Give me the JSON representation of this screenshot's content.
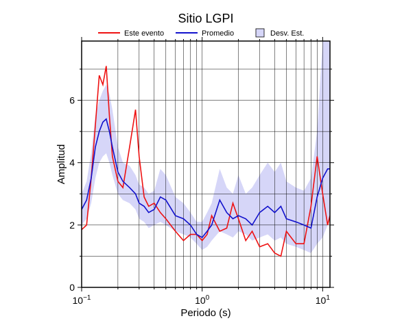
{
  "chart_data": {
    "type": "line",
    "title": "Sitio LGPI",
    "x_label": "Periodo (s)",
    "y_label": "Amplitud",
    "log_x": true,
    "grid": true,
    "xlim": [
      0.1,
      11.5
    ],
    "ylim": [
      0,
      7.9
    ],
    "xticks": [
      {
        "value": 0.1,
        "label": "10",
        "exponent": "−1"
      },
      {
        "value": 1,
        "label": "10",
        "exponent": "0"
      },
      {
        "value": 10,
        "label": "10",
        "exponent": "1"
      }
    ],
    "xminor": [
      0.2,
      0.3,
      0.4,
      0.5,
      0.6,
      0.7,
      0.8,
      0.9,
      2,
      3,
      4,
      5,
      6,
      7,
      8,
      9
    ],
    "yticks": [
      0,
      2,
      4,
      6
    ],
    "yminor": [
      1,
      3,
      5,
      7
    ],
    "x": [
      0.1,
      0.11,
      0.12,
      0.13,
      0.14,
      0.15,
      0.16,
      0.17,
      0.18,
      0.2,
      0.22,
      0.25,
      0.28,
      0.3,
      0.33,
      0.36,
      0.4,
      0.45,
      0.5,
      0.6,
      0.7,
      0.8,
      0.9,
      1.0,
      1.1,
      1.2,
      1.4,
      1.6,
      1.8,
      2.0,
      2.3,
      2.6,
      3.0,
      3.5,
      4.0,
      4.5,
      5,
      6,
      7,
      8,
      9,
      10,
      11,
      11.5
    ],
    "band": {
      "name": "Desv. Est.",
      "color": "#d6d6f8",
      "lower": [
        2.0,
        2.2,
        2.7,
        3.5,
        4.0,
        4.2,
        4.3,
        4.0,
        3.6,
        3.0,
        2.8,
        2.7,
        2.5,
        2.2,
        2.1,
        1.9,
        2.0,
        2.1,
        2.0,
        1.8,
        1.7,
        1.6,
        1.4,
        1.2,
        1.3,
        1.5,
        1.8,
        1.7,
        1.6,
        1.8,
        1.7,
        1.5,
        1.6,
        1.7,
        1.5,
        1.6,
        1.4,
        1.3,
        1.2,
        1.1,
        1.4,
        1.6,
        2.0,
        2.2
      ],
      "upper": [
        3.0,
        3.4,
        4.3,
        5.5,
        6.0,
        6.3,
        6.5,
        6.2,
        5.7,
        4.5,
        4.0,
        3.9,
        3.6,
        3.3,
        3.2,
        3.0,
        3.1,
        3.8,
        3.6,
        2.9,
        2.7,
        2.4,
        2.1,
        2.1,
        2.4,
        2.7,
        3.8,
        3.2,
        3.0,
        3.6,
        3.0,
        3.2,
        3.6,
        4.0,
        3.7,
        4.0,
        3.4,
        3.2,
        3.1,
        3.5,
        5.0,
        7.9,
        7.9,
        7.9
      ]
    },
    "series": [
      {
        "name": "Este evento",
        "color": "#ee1111",
        "values": [
          1.85,
          2.0,
          3.5,
          5.2,
          6.8,
          6.5,
          7.1,
          5.5,
          4.2,
          3.4,
          3.2,
          4.5,
          5.7,
          4.2,
          2.9,
          2.6,
          2.7,
          2.4,
          2.2,
          1.8,
          1.5,
          1.7,
          1.7,
          1.5,
          1.7,
          2.3,
          1.8,
          1.9,
          2.7,
          2.2,
          1.5,
          1.8,
          1.3,
          1.4,
          1.1,
          1.0,
          1.8,
          1.4,
          1.4,
          2.6,
          4.2,
          3.0,
          2.0,
          2.3
        ]
      },
      {
        "name": "Promedio",
        "color": "#1111cc",
        "values": [
          2.5,
          2.8,
          3.5,
          4.5,
          5.0,
          5.3,
          5.4,
          5.0,
          4.5,
          3.7,
          3.4,
          3.2,
          3.0,
          2.7,
          2.6,
          2.4,
          2.5,
          2.9,
          2.8,
          2.3,
          2.2,
          2.0,
          1.7,
          1.6,
          1.8,
          2.0,
          2.8,
          2.4,
          2.2,
          2.3,
          2.2,
          2.0,
          2.4,
          2.6,
          2.4,
          2.6,
          2.2,
          2.1,
          2.0,
          1.9,
          2.9,
          3.5,
          3.8,
          3.8
        ]
      }
    ]
  }
}
